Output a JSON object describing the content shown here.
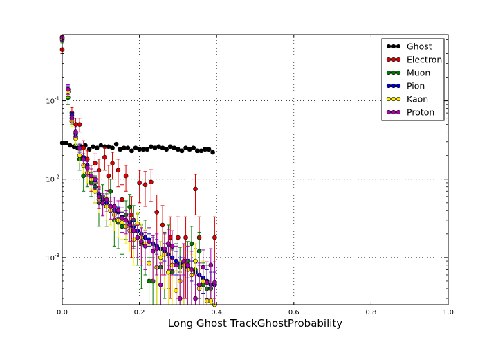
{
  "chart_data": {
    "type": "scatter",
    "title": "",
    "xlabel": "Long Ghost TrackGhostProbability",
    "ylabel": "",
    "xlim": [
      0,
      1
    ],
    "ylim": [
      0.00025,
      0.7
    ],
    "yscale": "log",
    "grid": true,
    "legend_position": "top-right",
    "x_ticks": [
      {
        "value": 0,
        "label": "0.0"
      },
      {
        "value": 0.2,
        "label": "0.2"
      },
      {
        "value": 0.4,
        "label": "0.4"
      },
      {
        "value": 0.6,
        "label": "0.6"
      },
      {
        "value": 0.8,
        "label": "0.8"
      },
      {
        "value": 1.0,
        "label": "1.0"
      }
    ],
    "y_ticks": [
      {
        "value": 0.001,
        "base": "10",
        "exp": "-3"
      },
      {
        "value": 0.01,
        "base": "10",
        "exp": "-2"
      },
      {
        "value": 0.1,
        "base": "10",
        "exp": "-1"
      }
    ],
    "series": [
      {
        "name": "Ghost",
        "color": "#000000",
        "x": [
          0.0,
          0.01,
          0.02,
          0.03,
          0.04,
          0.05,
          0.06,
          0.07,
          0.08,
          0.09,
          0.1,
          0.11,
          0.12,
          0.13,
          0.14,
          0.15,
          0.16,
          0.17,
          0.18,
          0.19,
          0.2,
          0.21,
          0.22,
          0.23,
          0.24,
          0.25,
          0.26,
          0.27,
          0.28,
          0.29,
          0.3,
          0.31,
          0.32,
          0.33,
          0.34,
          0.35,
          0.36,
          0.37,
          0.38,
          0.39
        ],
        "y": [
          0.029,
          0.029,
          0.027,
          0.026,
          0.025,
          0.026,
          0.027,
          0.024,
          0.026,
          0.025,
          0.027,
          0.026,
          0.026,
          0.025,
          0.028,
          0.024,
          0.025,
          0.025,
          0.023,
          0.025,
          0.024,
          0.024,
          0.024,
          0.026,
          0.025,
          0.026,
          0.025,
          0.024,
          0.026,
          0.025,
          0.024,
          0.023,
          0.025,
          0.024,
          0.025,
          0.023,
          0.023,
          0.024,
          0.024,
          0.022
        ],
        "err": [
          0.0012,
          0.0012,
          0.0011,
          0.0011,
          0.0011,
          0.0011,
          0.0011,
          0.0011,
          0.0011,
          0.0011,
          0.0011,
          0.0011,
          0.0011,
          0.0011,
          0.0012,
          0.0011,
          0.0011,
          0.0011,
          0.0011,
          0.0011,
          0.0011,
          0.0011,
          0.0011,
          0.0011,
          0.0011,
          0.0011,
          0.0011,
          0.0011,
          0.0011,
          0.0011,
          0.0011,
          0.0011,
          0.0011,
          0.0011,
          0.0011,
          0.0011,
          0.0011,
          0.0011,
          0.0011,
          0.0011
        ]
      },
      {
        "name": "Electron",
        "color": "#dd0000",
        "x": [
          0.0,
          0.015,
          0.025,
          0.035,
          0.045,
          0.055,
          0.065,
          0.075,
          0.085,
          0.095,
          0.11,
          0.12,
          0.13,
          0.145,
          0.155,
          0.165,
          0.18,
          0.2,
          0.215,
          0.23,
          0.245,
          0.26,
          0.28,
          0.3,
          0.32,
          0.345,
          0.355,
          0.395
        ],
        "y": [
          0.45,
          0.13,
          0.07,
          0.05,
          0.05,
          0.025,
          0.018,
          0.011,
          0.016,
          0.013,
          0.019,
          0.011,
          0.016,
          0.013,
          0.0055,
          0.011,
          0.0035,
          0.009,
          0.0085,
          0.0092,
          0.0038,
          0.0026,
          0.0018,
          0.0018,
          0.0018,
          0.0075,
          0.0018,
          0.0018
        ],
        "err": [
          0.05,
          0.02,
          0.012,
          0.01,
          0.01,
          0.006,
          0.005,
          0.004,
          0.005,
          0.005,
          0.006,
          0.004,
          0.006,
          0.005,
          0.003,
          0.004,
          0.0025,
          0.004,
          0.004,
          0.004,
          0.0025,
          0.002,
          0.0015,
          0.0015,
          0.0015,
          0.004,
          0.0015,
          0.0015
        ]
      },
      {
        "name": "Muon",
        "color": "#007700",
        "x": [
          0.0,
          0.015,
          0.025,
          0.035,
          0.045,
          0.055,
          0.065,
          0.075,
          0.085,
          0.095,
          0.105,
          0.115,
          0.125,
          0.135,
          0.145,
          0.155,
          0.165,
          0.175,
          0.185,
          0.195,
          0.205,
          0.215,
          0.225,
          0.235,
          0.245,
          0.255,
          0.265,
          0.275,
          0.285,
          0.295,
          0.305,
          0.315,
          0.325,
          0.335,
          0.345,
          0.355,
          0.365,
          0.375,
          0.385,
          0.395
        ],
        "y": [
          0.6,
          0.11,
          0.06,
          0.035,
          0.018,
          0.011,
          0.012,
          0.009,
          0.008,
          0.005,
          0.006,
          0.0045,
          0.007,
          0.003,
          0.0028,
          0.0025,
          0.0035,
          0.0044,
          0.003,
          0.0022,
          0.0015,
          0.0018,
          0.0005,
          0.0005,
          0.00075,
          0.00075,
          0.0012,
          0.0015,
          0.00065,
          0.0008,
          0.00075,
          0.0008,
          0.0009,
          0.0015,
          0.0007,
          0.0012,
          0.00045,
          0.0004,
          0.0004,
          0.00025
        ],
        "err": [
          0.05,
          0.02,
          0.01,
          0.007,
          0.005,
          0.004,
          0.004,
          0.003,
          0.003,
          0.0025,
          0.0025,
          0.002,
          0.003,
          0.0016,
          0.0015,
          0.0014,
          0.0018,
          0.002,
          0.0016,
          0.0014,
          0.0011,
          0.0012,
          0.0005,
          0.0005,
          0.0006,
          0.0006,
          0.0009,
          0.0011,
          0.0006,
          0.0007,
          0.0006,
          0.0007,
          0.0007,
          0.001,
          0.0006,
          0.0009,
          0.0004,
          0.0004,
          0.0004,
          0.0002
        ]
      },
      {
        "name": "Pion",
        "color": "#0000cc",
        "x": [
          0.0,
          0.015,
          0.025,
          0.035,
          0.045,
          0.055,
          0.065,
          0.075,
          0.085,
          0.095,
          0.105,
          0.115,
          0.125,
          0.135,
          0.145,
          0.155,
          0.165,
          0.175,
          0.185,
          0.195,
          0.205,
          0.215,
          0.225,
          0.235,
          0.245,
          0.255,
          0.265,
          0.275,
          0.285,
          0.295,
          0.305,
          0.315,
          0.325,
          0.335,
          0.345,
          0.355,
          0.365,
          0.375,
          0.385,
          0.395
        ],
        "y": [
          0.63,
          0.14,
          0.065,
          0.038,
          0.025,
          0.019,
          0.015,
          0.011,
          0.009,
          0.0065,
          0.0055,
          0.005,
          0.0045,
          0.004,
          0.0038,
          0.0033,
          0.003,
          0.0028,
          0.0025,
          0.0022,
          0.002,
          0.0018,
          0.0017,
          0.0015,
          0.0014,
          0.0013,
          0.0012,
          0.0011,
          0.001,
          0.0009,
          0.00085,
          0.0008,
          0.00075,
          0.0007,
          0.00065,
          0.0006,
          0.00055,
          0.0005,
          0.00045,
          0.00045
        ],
        "err": [
          0.04,
          0.015,
          0.006,
          0.004,
          0.003,
          0.002,
          0.0018,
          0.0014,
          0.0012,
          0.0009,
          0.0008,
          0.0007,
          0.0007,
          0.0006,
          0.0006,
          0.0005,
          0.0005,
          0.0005,
          0.0004,
          0.0004,
          0.0004,
          0.0004,
          0.0003,
          0.0003,
          0.0003,
          0.0003,
          0.0003,
          0.0003,
          0.0003,
          0.0003,
          0.0002,
          0.0002,
          0.0002,
          0.0002,
          0.0002,
          0.0002,
          0.0002,
          0.0002,
          0.0002,
          0.0002
        ]
      },
      {
        "name": "Kaon",
        "color": "#ffee00",
        "x": [
          0.0,
          0.015,
          0.025,
          0.035,
          0.045,
          0.055,
          0.065,
          0.075,
          0.085,
          0.095,
          0.105,
          0.115,
          0.125,
          0.135,
          0.145,
          0.155,
          0.165,
          0.175,
          0.185,
          0.195,
          0.205,
          0.215,
          0.225,
          0.235,
          0.245,
          0.255,
          0.265,
          0.275,
          0.285,
          0.295,
          0.305,
          0.315,
          0.325,
          0.335,
          0.345,
          0.355,
          0.365,
          0.375,
          0.385,
          0.395
        ],
        "y": [
          0.65,
          0.13,
          0.055,
          0.033,
          0.02,
          0.015,
          0.012,
          0.01,
          0.007,
          0.0055,
          0.005,
          0.0045,
          0.004,
          0.0035,
          0.003,
          0.0028,
          0.0025,
          0.0022,
          0.0017,
          0.0027,
          0.0018,
          0.0015,
          0.00085,
          0.0012,
          0.00075,
          0.001,
          0.0011,
          0.00065,
          0.0008,
          0.00038,
          0.0005,
          0.0008,
          0.0007,
          0.0006,
          0.0009,
          0.0004,
          0.0005,
          0.00028,
          0.00028,
          0.00025
        ],
        "err": [
          0.05,
          0.02,
          0.008,
          0.006,
          0.004,
          0.003,
          0.003,
          0.0025,
          0.002,
          0.0018,
          0.0016,
          0.0015,
          0.0014,
          0.0013,
          0.0012,
          0.0011,
          0.001,
          0.001,
          0.0009,
          0.0011,
          0.0009,
          0.0008,
          0.0006,
          0.0007,
          0.0005,
          0.0006,
          0.0007,
          0.0005,
          0.0006,
          0.0003,
          0.0004,
          0.0006,
          0.0005,
          0.0005,
          0.0006,
          0.0003,
          0.0004,
          0.0002,
          0.0002,
          0.0002
        ]
      },
      {
        "name": "Proton",
        "color": "#aa00aa",
        "x": [
          0.0,
          0.015,
          0.025,
          0.035,
          0.045,
          0.055,
          0.065,
          0.075,
          0.085,
          0.095,
          0.105,
          0.115,
          0.125,
          0.135,
          0.145,
          0.155,
          0.165,
          0.175,
          0.185,
          0.195,
          0.205,
          0.215,
          0.225,
          0.235,
          0.245,
          0.255,
          0.265,
          0.275,
          0.285,
          0.295,
          0.305,
          0.315,
          0.325,
          0.335,
          0.345,
          0.355,
          0.365,
          0.375,
          0.385,
          0.395
        ],
        "y": [
          0.64,
          0.14,
          0.06,
          0.04,
          0.025,
          0.018,
          0.014,
          0.011,
          0.01,
          0.006,
          0.005,
          0.0055,
          0.0045,
          0.0045,
          0.004,
          0.0032,
          0.003,
          0.0026,
          0.0022,
          0.0018,
          0.0016,
          0.0014,
          0.0016,
          0.0012,
          0.0013,
          0.00045,
          0.0013,
          0.0015,
          0.0014,
          0.0008,
          0.0003,
          0.0009,
          0.0008,
          0.0007,
          0.0003,
          0.00045,
          0.00075,
          0.00048,
          0.0008,
          0.00048
        ],
        "err": [
          0.05,
          0.02,
          0.008,
          0.006,
          0.004,
          0.003,
          0.003,
          0.0025,
          0.0025,
          0.0018,
          0.0016,
          0.0016,
          0.0014,
          0.0014,
          0.0013,
          0.0011,
          0.001,
          0.001,
          0.0009,
          0.0008,
          0.0008,
          0.0007,
          0.0008,
          0.0007,
          0.0007,
          0.0004,
          0.0007,
          0.0008,
          0.0008,
          0.0006,
          0.0003,
          0.0006,
          0.0006,
          0.0005,
          0.0003,
          0.0004,
          0.0005,
          0.0004,
          0.0005,
          0.0004
        ]
      }
    ]
  }
}
